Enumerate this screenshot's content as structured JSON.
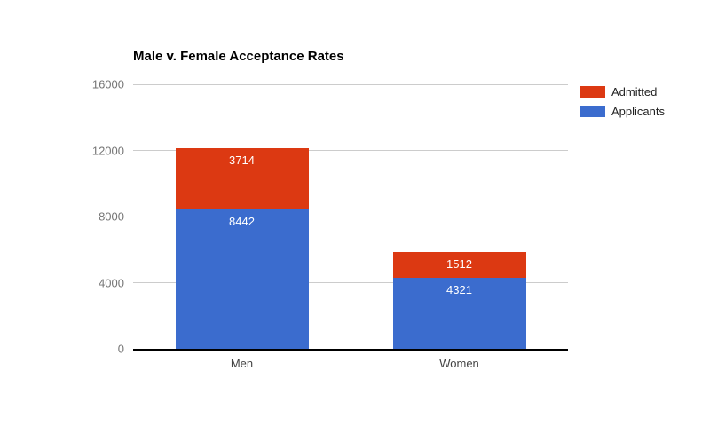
{
  "chart_data": {
    "type": "bar",
    "stacked": true,
    "title": "Male v. Female Acceptance Rates",
    "categories": [
      "Men",
      "Women"
    ],
    "series": [
      {
        "name": "Applicants",
        "color": "#3B6CCE",
        "values": [
          8442,
          4321
        ]
      },
      {
        "name": "Admitted",
        "color": "#DC3912",
        "values": [
          3714,
          1512
        ]
      }
    ],
    "legend": [
      "Admitted",
      "Applicants"
    ],
    "legend_position": "right",
    "xlabel": "",
    "ylabel": "",
    "ylim": [
      0,
      16000
    ],
    "yticks": [
      0,
      4000,
      8000,
      12000,
      16000
    ],
    "grid": true,
    "grid_color": "#cccccc",
    "axis_color": "#000000",
    "ytick_label_color": "#757575",
    "xtick_label_color": "#444444",
    "bar_value_label_color": "#ffffff"
  }
}
